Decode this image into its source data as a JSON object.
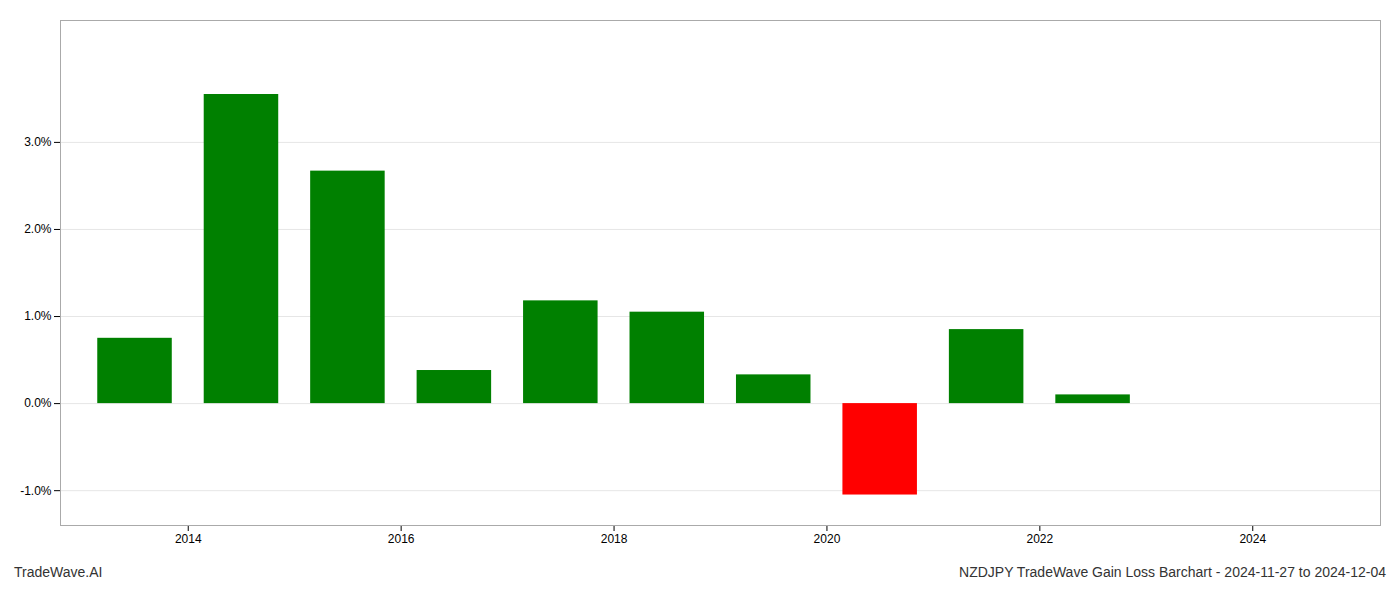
{
  "chart_data": {
    "type": "bar",
    "x": [
      2013.5,
      2014.5,
      2015.5,
      2016.5,
      2017.5,
      2018.5,
      2019.5,
      2020.5,
      2021.5,
      2022.5
    ],
    "values": [
      0.0075,
      0.0355,
      0.0267,
      0.0038,
      0.0118,
      0.0105,
      0.0033,
      -0.0105,
      0.0085,
      0.001
    ],
    "colors": [
      "#008000",
      "#008000",
      "#008000",
      "#008000",
      "#008000",
      "#008000",
      "#008000",
      "#ff0000",
      "#008000",
      "#008000"
    ],
    "xlim": [
      2012.8,
      2025.2
    ],
    "xticks": [
      2014,
      2016,
      2018,
      2020,
      2022,
      2024
    ],
    "ylim": [
      -0.014,
      0.044
    ],
    "yticks": [
      {
        "value": -0.01,
        "label": "-1.0%"
      },
      {
        "value": 0.0,
        "label": "0.0%"
      },
      {
        "value": 0.01,
        "label": "1.0%"
      },
      {
        "value": 0.02,
        "label": "2.0%"
      },
      {
        "value": 0.03,
        "label": "3.0%"
      }
    ],
    "grid": true,
    "annotations": [
      "TradeWave.AI",
      "NZDJPY TradeWave Gain Loss Barchart - 2024-11-27 to 2024-12-04"
    ]
  }
}
